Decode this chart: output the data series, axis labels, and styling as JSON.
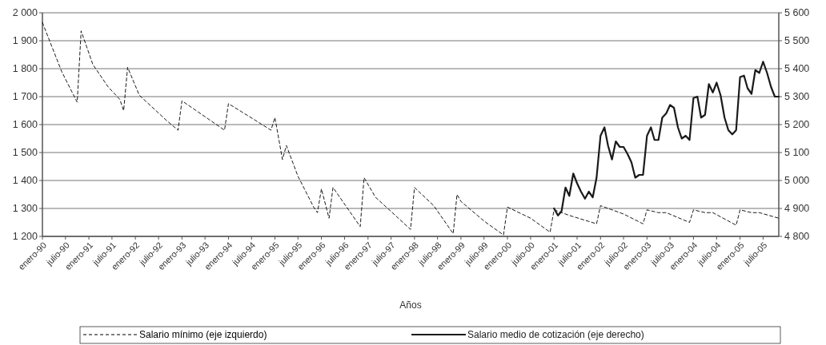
{
  "chart_data": {
    "type": "line",
    "xlabel": "Años",
    "xlim": [
      "1990-01",
      "2005-11"
    ],
    "xticks": [
      {
        "value": "1990-01",
        "label": "enero-90"
      },
      {
        "value": "1990-07",
        "label": "julio-90"
      },
      {
        "value": "1991-01",
        "label": "enero-91"
      },
      {
        "value": "1991-07",
        "label": "julio-91"
      },
      {
        "value": "1992-01",
        "label": "enero-92"
      },
      {
        "value": "1992-07",
        "label": "julio-92"
      },
      {
        "value": "1993-01",
        "label": "enero-93"
      },
      {
        "value": "1993-07",
        "label": "julio-93"
      },
      {
        "value": "1994-01",
        "label": "enero-94"
      },
      {
        "value": "1994-07",
        "label": "julio-94"
      },
      {
        "value": "1995-01",
        "label": "enero-95"
      },
      {
        "value": "1995-07",
        "label": "julio-95"
      },
      {
        "value": "1996-01",
        "label": "enero-96"
      },
      {
        "value": "1996-07",
        "label": "julio-96"
      },
      {
        "value": "1997-01",
        "label": "enero-97"
      },
      {
        "value": "1997-07",
        "label": "julio-97"
      },
      {
        "value": "1998-01",
        "label": "enero-98"
      },
      {
        "value": "1998-07",
        "label": "julio-98"
      },
      {
        "value": "1999-01",
        "label": "enero-99"
      },
      {
        "value": "1999-07",
        "label": "julio-99"
      },
      {
        "value": "2000-01",
        "label": "enero-00"
      },
      {
        "value": "2000-07",
        "label": "julio-00"
      },
      {
        "value": "2001-01",
        "label": "enero-01"
      },
      {
        "value": "2001-07",
        "label": "julio-01"
      },
      {
        "value": "2002-01",
        "label": "enero-02"
      },
      {
        "value": "2002-07",
        "label": "julio-02"
      },
      {
        "value": "2003-01",
        "label": "enero-03"
      },
      {
        "value": "2003-07",
        "label": "julio-03"
      },
      {
        "value": "2004-01",
        "label": "enero-04"
      },
      {
        "value": "2004-07",
        "label": "julio-04"
      },
      {
        "value": "2005-01",
        "label": "enero-05"
      },
      {
        "value": "2005-07",
        "label": "julio-05"
      }
    ],
    "ylim": [
      1200,
      2000
    ],
    "yticks": [
      {
        "value": 1200,
        "label": "1 200"
      },
      {
        "value": 1300,
        "label": "1 300"
      },
      {
        "value": 1400,
        "label": "1 400"
      },
      {
        "value": 1500,
        "label": "1 500"
      },
      {
        "value": 1600,
        "label": "1 600"
      },
      {
        "value": 1700,
        "label": "1 700"
      },
      {
        "value": 1800,
        "label": "1 800"
      },
      {
        "value": 1900,
        "label": "1 900"
      },
      {
        "value": 2000,
        "label": "2 000"
      }
    ],
    "y2lim": [
      4800,
      5600
    ],
    "y2ticks": [
      {
        "value": 4800,
        "label": "4 800"
      },
      {
        "value": 4900,
        "label": "4 900"
      },
      {
        "value": 5000,
        "label": "5 000"
      },
      {
        "value": 5100,
        "label": "5 100"
      },
      {
        "value": 5200,
        "label": "5 200"
      },
      {
        "value": 5300,
        "label": "5 300"
      },
      {
        "value": 5400,
        "label": "5 400"
      },
      {
        "value": 5500,
        "label": "5 500"
      },
      {
        "value": 5600,
        "label": "5 600"
      }
    ],
    "grid": "y",
    "legend": "bottom",
    "marker": "none",
    "series": [
      {
        "name": "Salario mínimo (eje izquierdo)",
        "color": "#000000",
        "line_style": "dashed",
        "x": [
          "1990-01",
          "1990-06",
          "1990-10",
          "1990-11",
          "1991-02",
          "1991-06",
          "1991-09",
          "1991-10",
          "1991-11",
          "1992-02",
          "1992-09",
          "1992-12",
          "1993-01",
          "1993-12",
          "1994-01",
          "1994-08",
          "1994-12",
          "1995-01",
          "1995-03",
          "1995-04",
          "1995-07",
          "1995-11",
          "1995-12",
          "1996-01",
          "1996-03",
          "1996-04",
          "1996-11",
          "1996-12",
          "1997-03",
          "1997-12",
          "1998-01",
          "1998-06",
          "1998-11",
          "1998-12",
          "1999-01",
          "1999-07",
          "1999-12",
          "2000-01",
          "2000-07",
          "2000-12",
          "2001-01",
          "2001-05",
          "2001-12",
          "2002-01",
          "2002-07",
          "2002-12",
          "2003-01",
          "2003-04",
          "2003-06",
          "2003-12",
          "2004-01",
          "2004-04",
          "2004-06",
          "2004-12",
          "2005-01",
          "2005-04",
          "2005-06",
          "2005-11"
        ],
        "values": [
          1965,
          1790,
          1680,
          1935,
          1815,
          1735,
          1690,
          1650,
          1805,
          1705,
          1615,
          1580,
          1685,
          1580,
          1675,
          1615,
          1580,
          1625,
          1475,
          1525,
          1415,
          1305,
          1285,
          1370,
          1265,
          1375,
          1235,
          1410,
          1340,
          1225,
          1375,
          1310,
          1210,
          1350,
          1325,
          1255,
          1205,
          1305,
          1265,
          1215,
          1295,
          1275,
          1245,
          1310,
          1280,
          1245,
          1295,
          1285,
          1285,
          1250,
          1295,
          1285,
          1285,
          1240,
          1295,
          1285,
          1285,
          1265
        ]
      },
      {
        "name": "Salario medio de cotización (eje derecho)",
        "color": "#1a1a1a",
        "line_style": "solid",
        "axis": "y2",
        "x": [
          "2001-01",
          "2001-02",
          "2001-03",
          "2001-04",
          "2001-05",
          "2001-06",
          "2001-07",
          "2001-08",
          "2001-09",
          "2001-10",
          "2001-11",
          "2001-12",
          "2002-01",
          "2002-02",
          "2002-03",
          "2002-04",
          "2002-05",
          "2002-06",
          "2002-07",
          "2002-08",
          "2002-09",
          "2002-10",
          "2002-11",
          "2002-12",
          "2003-01",
          "2003-02",
          "2003-03",
          "2003-04",
          "2003-05",
          "2003-06",
          "2003-07",
          "2003-08",
          "2003-09",
          "2003-10",
          "2003-11",
          "2003-12",
          "2004-01",
          "2004-02",
          "2004-03",
          "2004-04",
          "2004-05",
          "2004-06",
          "2004-07",
          "2004-08",
          "2004-09",
          "2004-10",
          "2004-11",
          "2004-12",
          "2005-01",
          "2005-02",
          "2005-03",
          "2005-04",
          "2005-05",
          "2005-06",
          "2005-07",
          "2005-08",
          "2005-09",
          "2005-10",
          "2005-11"
        ],
        "values": [
          4900,
          4875,
          4890,
          4975,
          4945,
          5025,
          4990,
          4960,
          4935,
          4960,
          4940,
          5010,
          5160,
          5190,
          5125,
          5075,
          5140,
          5120,
          5120,
          5095,
          5065,
          5010,
          5020,
          5020,
          5160,
          5190,
          5145,
          5145,
          5225,
          5240,
          5270,
          5260,
          5190,
          5150,
          5160,
          5145,
          5295,
          5300,
          5225,
          5235,
          5345,
          5315,
          5350,
          5305,
          5225,
          5180,
          5165,
          5180,
          5370,
          5375,
          5330,
          5310,
          5395,
          5385,
          5425,
          5385,
          5335,
          5300,
          5300
        ]
      }
    ]
  }
}
